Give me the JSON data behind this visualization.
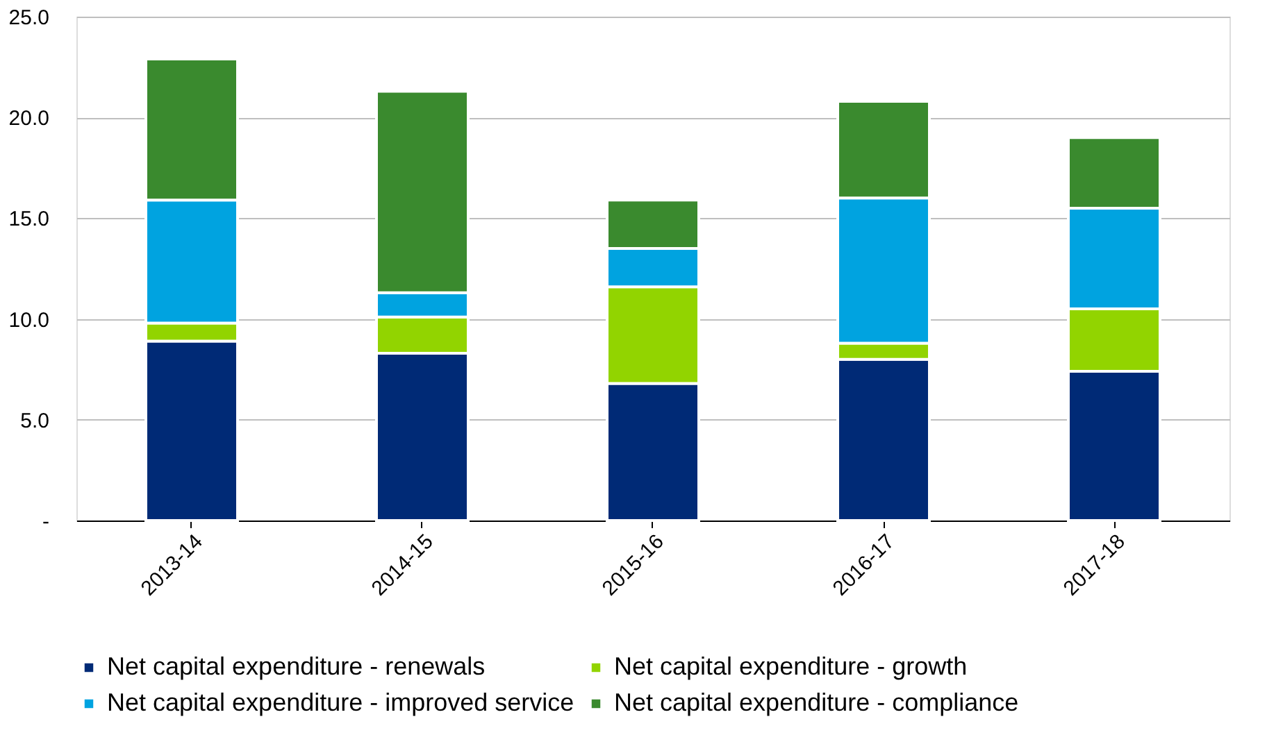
{
  "chart_data": {
    "type": "bar",
    "stacked": true,
    "categories": [
      "2013-14",
      "2014-15",
      "2015-16",
      "2016-17",
      "2017-18"
    ],
    "series": [
      {
        "name": "Net capital expenditure - renewals",
        "color": "#002a76",
        "values": [
          8.9,
          8.3,
          6.8,
          8.0,
          7.4
        ]
      },
      {
        "name": "Net capital expenditure - growth",
        "color": "#92d400",
        "values": [
          0.9,
          1.8,
          4.8,
          0.8,
          3.1
        ]
      },
      {
        "name": "Net capital expenditure - improved service",
        "color": "#00a3e0",
        "values": [
          6.1,
          1.2,
          1.9,
          7.2,
          5.0
        ]
      },
      {
        "name": "Net capital expenditure - compliance",
        "color": "#3a8a2e",
        "values": [
          7.0,
          10.0,
          2.4,
          4.8,
          3.5
        ]
      }
    ],
    "ylim": [
      0,
      25
    ],
    "yticks": [
      {
        "value": 0,
        "label": "-"
      },
      {
        "value": 5,
        "label": "5.0"
      },
      {
        "value": 10,
        "label": "10.0"
      },
      {
        "value": 15,
        "label": "15.0"
      },
      {
        "value": 20,
        "label": "20.0"
      },
      {
        "value": 25,
        "label": "25.0"
      }
    ],
    "grid": "y",
    "legend": "bottom"
  }
}
